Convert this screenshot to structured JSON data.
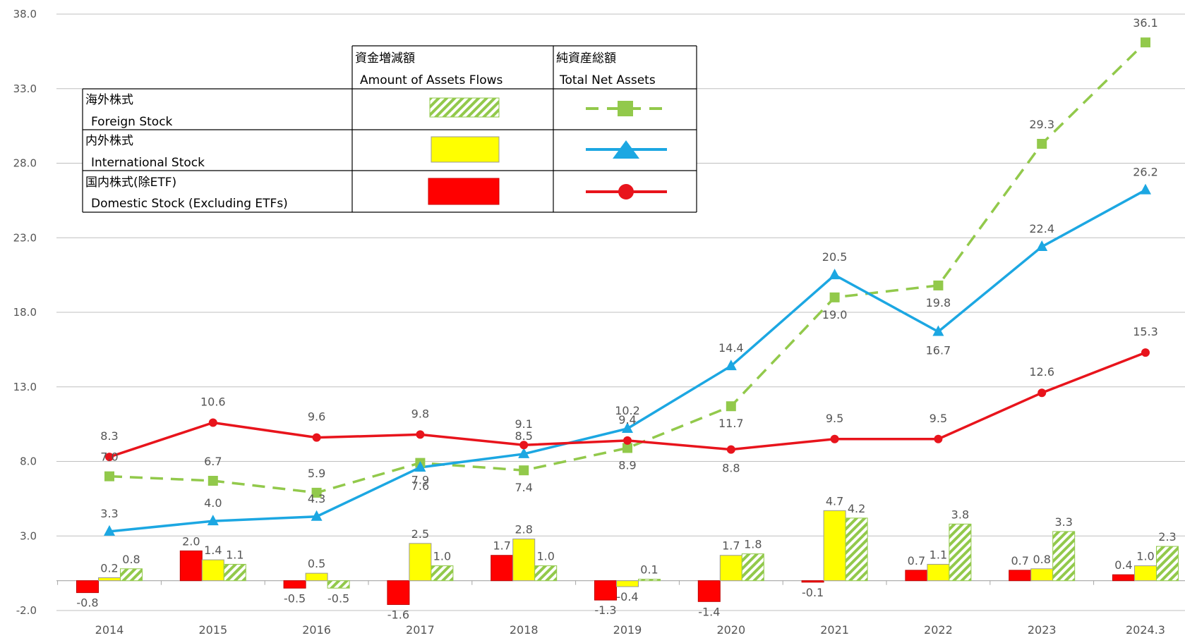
{
  "colors": {
    "foreign": "#92c94b",
    "international": "#1ca7e2",
    "domestic": "#e8141c",
    "international_bar": "#ffff00",
    "domestic_bar": "#ff0000",
    "grid": "#bfbfbf"
  },
  "legend": {
    "flows_header_ja": "資金増減額",
    "flows_header_en": "Amount of Assets Flows",
    "assets_header_ja": "純資産総額",
    "assets_header_en": "Total Net Assets",
    "rows": [
      {
        "ja": "海外株式",
        "en": "Foreign Stock",
        "key": "foreign"
      },
      {
        "ja": "内外株式",
        "en": "International Stock",
        "key": "international"
      },
      {
        "ja": "国内株式(除ETF)",
        "en": "Domestic Stock (Excluding ETFs)",
        "key": "domestic"
      }
    ]
  },
  "chart_data": {
    "type": "bar+line",
    "categories": [
      "2014",
      "2015",
      "2016",
      "2017",
      "2018",
      "2019",
      "2020",
      "2021",
      "2022",
      "2023",
      "2024.3"
    ],
    "ylim": [
      -2.0,
      38.0
    ],
    "yticks": [
      "38.0",
      "33.0",
      "28.0",
      "23.0",
      "18.0",
      "13.0",
      "8.0",
      "3.0",
      "-2.0"
    ],
    "ytick_values": [
      38,
      33,
      28,
      23,
      18,
      13,
      8,
      3,
      -2
    ],
    "grid": true,
    "legend_position": "top-left",
    "bar_series": [
      {
        "key": "domestic",
        "values": [
          -0.8,
          2.0,
          -0.5,
          -1.6,
          1.7,
          -1.3,
          -1.4,
          -0.1,
          0.7,
          0.7,
          0.4
        ],
        "labels": [
          "-0.8",
          "2.0",
          "-0.5",
          "-1.6",
          "1.7",
          "-1.3",
          "-1.4",
          "-0.1",
          "0.7",
          "0.7",
          "0.4"
        ]
      },
      {
        "key": "international",
        "values": [
          0.2,
          1.4,
          0.5,
          2.5,
          2.8,
          -0.4,
          1.7,
          4.7,
          1.1,
          0.8,
          1.0
        ],
        "labels": [
          "0.2",
          "1.4",
          "0.5",
          "2.5",
          "2.8",
          "-0.4",
          "1.7",
          "4.7",
          "1.1",
          "0.8",
          "1.0"
        ]
      },
      {
        "key": "foreign",
        "values": [
          0.8,
          1.1,
          -0.5,
          1.0,
          1.0,
          0.1,
          1.8,
          4.2,
          3.8,
          3.3,
          2.3
        ],
        "labels": [
          "0.8",
          "1.1",
          "-0.5",
          "1.0",
          "1.0",
          "0.1",
          "1.8",
          "4.2",
          "3.8",
          "3.3",
          "2.3"
        ]
      }
    ],
    "line_series": [
      {
        "key": "foreign",
        "values": [
          7.0,
          6.7,
          5.9,
          7.9,
          7.4,
          8.9,
          11.7,
          19.0,
          19.8,
          29.3,
          36.1
        ],
        "labels": [
          "7.0",
          "6.7",
          "5.9",
          "7.9",
          "7.4",
          "8.9",
          "11.7",
          "19.0",
          "19.8",
          "29.3",
          "36.1"
        ]
      },
      {
        "key": "international",
        "values": [
          3.3,
          4.0,
          4.3,
          7.6,
          8.5,
          10.2,
          14.4,
          20.5,
          16.7,
          22.4,
          26.2
        ],
        "labels": [
          "3.3",
          "4.0",
          "4.3",
          "7.6",
          "8.5",
          "10.2",
          "14.4",
          "20.5",
          "16.7",
          "22.4",
          "26.2"
        ]
      },
      {
        "key": "domestic",
        "values": [
          8.3,
          10.6,
          9.6,
          9.8,
          9.1,
          9.4,
          8.8,
          9.5,
          9.5,
          12.6,
          15.3
        ],
        "labels": [
          "8.3",
          "10.6",
          "9.6",
          "9.8",
          "9.1",
          "9.4",
          "8.8",
          "9.5",
          "9.5",
          "12.6",
          "15.3"
        ]
      }
    ]
  }
}
